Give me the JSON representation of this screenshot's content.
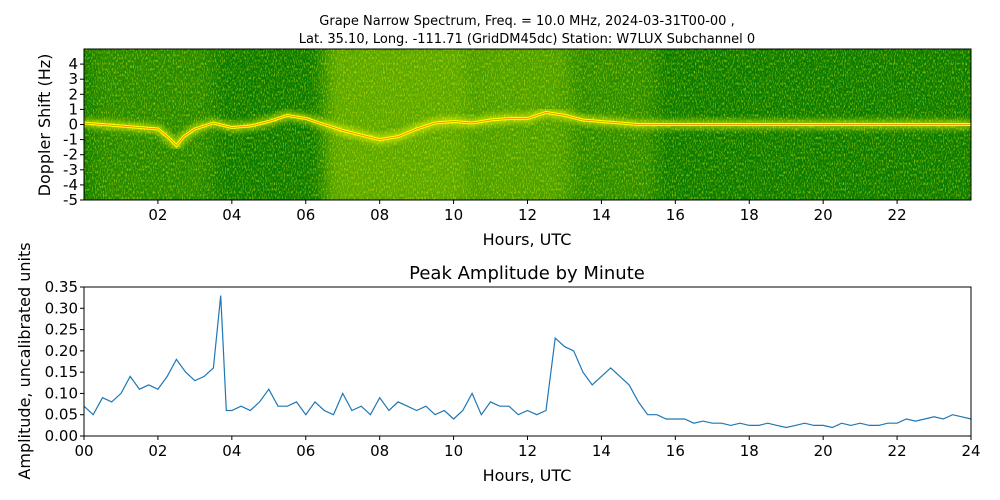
{
  "chart_data": [
    {
      "type": "heatmap",
      "title_line1": "Grape Narrow Spectrum, Freq. = 10.0 MHz, 2024-03-31T00-00 ,",
      "title_line2": "Lat.  35.10, Long. -111.71 (GridDM45dc) Station: W7LUX Subchannel 0",
      "xlabel": "Hours, UTC",
      "ylabel": "Doppler Shift (Hz)",
      "xlim": [
        0,
        24
      ],
      "ylim": [
        -5,
        5
      ],
      "x_ticks": [
        2,
        4,
        6,
        8,
        10,
        12,
        14,
        16,
        18,
        20,
        22
      ],
      "x_tick_labels": [
        "02",
        "04",
        "06",
        "08",
        "10",
        "12",
        "14",
        "16",
        "18",
        "20",
        "22"
      ],
      "y_ticks": [
        4,
        3,
        2,
        1,
        0,
        -1,
        -2,
        -3,
        -4,
        -5
      ],
      "y_tick_labels": [
        "4",
        "3",
        "2",
        "1",
        "0",
        "-1",
        "-2",
        "-3",
        "-4",
        "-5"
      ],
      "colors": {
        "background": "#0a7a00",
        "mid": "#9ccc00",
        "high": "#ffff00",
        "peak": "#ff2000"
      },
      "carrier_trace": [
        [
          0,
          0.1
        ],
        [
          0.5,
          0.0
        ],
        [
          1,
          -0.1
        ],
        [
          1.5,
          -0.2
        ],
        [
          2,
          -0.3
        ],
        [
          2.3,
          -0.9
        ],
        [
          2.5,
          -1.4
        ],
        [
          2.7,
          -0.8
        ],
        [
          3,
          -0.3
        ],
        [
          3.5,
          0.1
        ],
        [
          4,
          -0.2
        ],
        [
          4.5,
          -0.1
        ],
        [
          5,
          0.2
        ],
        [
          5.5,
          0.6
        ],
        [
          6,
          0.4
        ],
        [
          6.5,
          0.0
        ],
        [
          7,
          -0.4
        ],
        [
          7.5,
          -0.7
        ],
        [
          8,
          -1.0
        ],
        [
          8.5,
          -0.8
        ],
        [
          9,
          -0.3
        ],
        [
          9.5,
          0.1
        ],
        [
          10,
          0.2
        ],
        [
          10.5,
          0.1
        ],
        [
          11,
          0.3
        ],
        [
          11.5,
          0.4
        ],
        [
          12,
          0.4
        ],
        [
          12.5,
          0.8
        ],
        [
          13,
          0.6
        ],
        [
          13.5,
          0.3
        ],
        [
          14,
          0.2
        ],
        [
          14.5,
          0.1
        ],
        [
          15,
          0.0
        ],
        [
          16,
          0.0
        ],
        [
          18,
          0.0
        ],
        [
          20,
          0.0
        ],
        [
          22,
          0.0
        ],
        [
          24,
          0.0
        ]
      ]
    },
    {
      "type": "line",
      "title": "Peak Amplitude by Minute",
      "xlabel": "Hours, UTC",
      "ylabel": "Amplitude, uncalibrated units",
      "xlim": [
        0,
        24
      ],
      "ylim": [
        0,
        0.35
      ],
      "x_ticks": [
        0,
        2,
        4,
        6,
        8,
        10,
        12,
        14,
        16,
        18,
        20,
        22,
        24
      ],
      "x_tick_labels": [
        "00",
        "02",
        "04",
        "06",
        "08",
        "10",
        "12",
        "14",
        "16",
        "18",
        "20",
        "22",
        "24"
      ],
      "y_ticks": [
        0,
        0.05,
        0.1,
        0.15,
        0.2,
        0.25,
        0.3,
        0.35
      ],
      "y_tick_labels": [
        "0.00",
        "0.05",
        "0.10",
        "0.15",
        "0.20",
        "0.25",
        "0.30",
        "0.35"
      ],
      "line_color": "#1f77b4",
      "series": [
        {
          "x": [
            0,
            0.25,
            0.5,
            0.75,
            1,
            1.25,
            1.5,
            1.75,
            2,
            2.25,
            2.5,
            2.75,
            3,
            3.25,
            3.5,
            3.7,
            3.75,
            3.85,
            4,
            4.25,
            4.5,
            4.75,
            5,
            5.25,
            5.5,
            5.75,
            6,
            6.25,
            6.5,
            6.75,
            7,
            7.25,
            7.5,
            7.75,
            8,
            8.25,
            8.5,
            8.75,
            9,
            9.25,
            9.5,
            9.75,
            10,
            10.25,
            10.5,
            10.75,
            11,
            11.25,
            11.5,
            11.75,
            12,
            12.25,
            12.5,
            12.75,
            13,
            13.25,
            13.5,
            13.75,
            14,
            14.25,
            14.5,
            14.75,
            15,
            15.25,
            15.5,
            15.75,
            16,
            16.25,
            16.5,
            16.75,
            17,
            17.25,
            17.5,
            17.75,
            18,
            18.25,
            18.5,
            18.75,
            19,
            19.25,
            19.5,
            19.75,
            20,
            20.25,
            20.5,
            20.75,
            21,
            21.25,
            21.5,
            21.75,
            22,
            22.25,
            22.5,
            22.75,
            23,
            23.25,
            23.5,
            23.75,
            24
          ],
          "values": [
            0.07,
            0.05,
            0.09,
            0.08,
            0.1,
            0.14,
            0.11,
            0.12,
            0.11,
            0.14,
            0.18,
            0.15,
            0.13,
            0.14,
            0.16,
            0.33,
            0.24,
            0.06,
            0.06,
            0.07,
            0.06,
            0.08,
            0.11,
            0.07,
            0.07,
            0.08,
            0.05,
            0.08,
            0.06,
            0.05,
            0.1,
            0.06,
            0.07,
            0.05,
            0.09,
            0.06,
            0.08,
            0.07,
            0.06,
            0.07,
            0.05,
            0.06,
            0.04,
            0.06,
            0.1,
            0.05,
            0.08,
            0.07,
            0.07,
            0.05,
            0.06,
            0.05,
            0.06,
            0.23,
            0.21,
            0.2,
            0.15,
            0.12,
            0.14,
            0.16,
            0.14,
            0.12,
            0.08,
            0.05,
            0.05,
            0.04,
            0.04,
            0.04,
            0.03,
            0.035,
            0.03,
            0.03,
            0.025,
            0.03,
            0.025,
            0.025,
            0.03,
            0.025,
            0.02,
            0.025,
            0.03,
            0.025,
            0.025,
            0.02,
            0.03,
            0.025,
            0.03,
            0.025,
            0.025,
            0.03,
            0.03,
            0.04,
            0.035,
            0.04,
            0.045,
            0.04,
            0.05,
            0.045,
            0.04
          ]
        }
      ]
    }
  ]
}
